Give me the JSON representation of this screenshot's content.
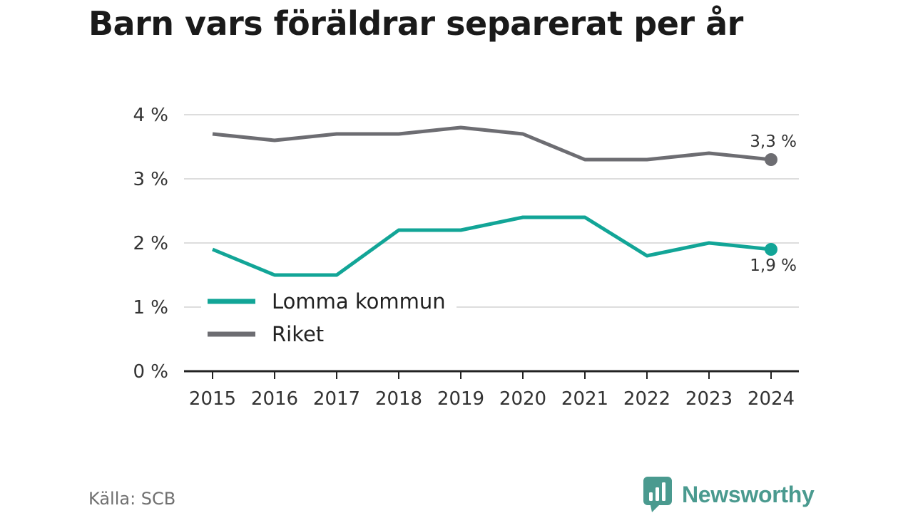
{
  "chart_data": {
    "type": "line",
    "title": "Barn vars föräldrar separerat per år",
    "categories": [
      "2015",
      "2016",
      "2017",
      "2018",
      "2019",
      "2020",
      "2021",
      "2022",
      "2023",
      "2024"
    ],
    "y_ticks": [
      0,
      1,
      2,
      3,
      4
    ],
    "y_tick_labels": [
      "0 %",
      "1 %",
      "2 %",
      "3 %",
      "4 %"
    ],
    "ylim": [
      0,
      4
    ],
    "grid": true,
    "legend_placement": "lower-left",
    "series": [
      {
        "name": "Lomma kommun",
        "color": "#12a597",
        "values": [
          1.9,
          1.5,
          1.5,
          2.2,
          2.2,
          2.4,
          2.4,
          1.8,
          2.0,
          1.9
        ],
        "end_label": "1,9 %"
      },
      {
        "name": "Riket",
        "color": "#6d6d72",
        "values": [
          3.7,
          3.6,
          3.7,
          3.7,
          3.8,
          3.7,
          3.3,
          3.3,
          3.4,
          3.3
        ],
        "end_label": "3,3 %"
      }
    ]
  },
  "footer": {
    "source": "Källa: SCB",
    "brand": "Newsworthy",
    "brand_icon": "bar-chart-speech-bubble-icon",
    "brand_color": "#4a9a8f"
  }
}
